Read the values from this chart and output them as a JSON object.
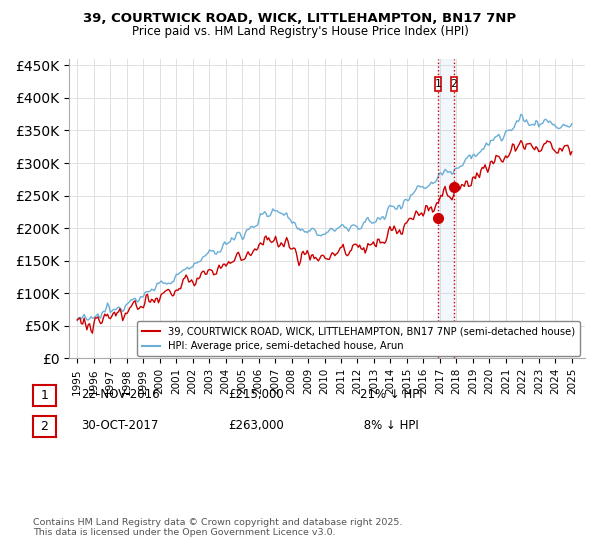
{
  "title_line1": "39, COURTWICK ROAD, WICK, LITTLEHAMPTON, BN17 7NP",
  "title_line2": "Price paid vs. HM Land Registry's House Price Index (HPI)",
  "ylim": [
    0,
    460000
  ],
  "yticks": [
    0,
    50000,
    100000,
    150000,
    200000,
    250000,
    300000,
    350000,
    400000,
    450000
  ],
  "hpi_color": "#6aaed6",
  "price_color": "#cc0000",
  "vline_color": "#cc0000",
  "purchase1_year": 2016.896,
  "purchase2_year": 2017.831,
  "purchase1_price": 215000,
  "purchase2_price": 263000,
  "legend_line1": "39, COURTWICK ROAD, WICK, LITTLEHAMPTON, BN17 7NP (semi-detached house)",
  "legend_line2": "HPI: Average price, semi-detached house, Arun",
  "footer": "Contains HM Land Registry data © Crown copyright and database right 2025.\nThis data is licensed under the Open Government Licence v3.0.",
  "background_color": "#ffffff",
  "grid_color": "#e0e0e0",
  "start_year": 1995,
  "end_year": 2025,
  "xlim_left": 1994.5,
  "xlim_right": 2025.8
}
